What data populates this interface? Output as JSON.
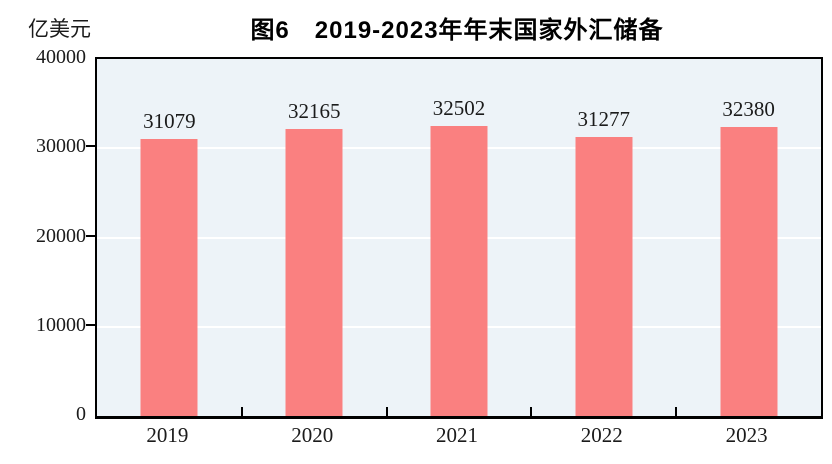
{
  "chart_data": {
    "type": "bar",
    "title": "图6　2019-2023年年末国家外汇储备",
    "unit_label": "亿美元",
    "categories": [
      "2019",
      "2020",
      "2021",
      "2022",
      "2023"
    ],
    "values": [
      31079,
      32165,
      32502,
      31277,
      32380
    ],
    "ylim": [
      0,
      40000
    ],
    "yticks": [
      0,
      10000,
      20000,
      30000,
      40000
    ],
    "legend": "none",
    "grid": "horizontal white gridlines at interior ticks",
    "colors": {
      "bar": "#FA8080",
      "plot_background": "#EDF3F8",
      "gridline": "#FFFFFF",
      "axis": "#000000",
      "text": "#1B1B1B"
    }
  }
}
